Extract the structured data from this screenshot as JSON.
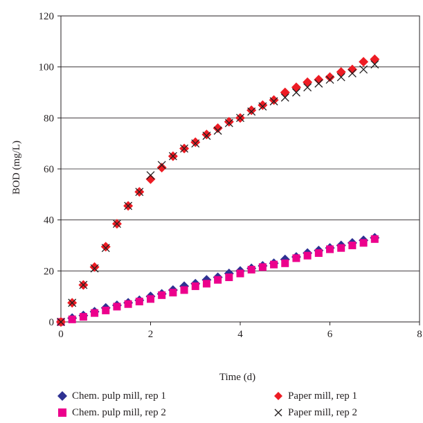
{
  "chart_data": {
    "type": "scatter",
    "xlabel": "Time (d)",
    "ylabel": "BOD (mg/L)",
    "xlim": [
      0,
      8
    ],
    "ylim": [
      0,
      120
    ],
    "xticks": [
      0,
      2,
      4,
      6,
      8
    ],
    "yticks": [
      0,
      20,
      40,
      60,
      80,
      100,
      120
    ],
    "grid": "horizontal",
    "legend_position": "bottom",
    "series": [
      {
        "name": "Chem. pulp mill, rep 1",
        "marker": "diamond",
        "color": "#2e3192",
        "x": [
          0,
          0.25,
          0.5,
          0.75,
          1,
          1.25,
          1.5,
          1.75,
          2,
          2.25,
          2.5,
          2.75,
          3,
          3.25,
          3.5,
          3.75,
          4,
          4.25,
          4.5,
          4.75,
          5,
          5.25,
          5.5,
          5.75,
          6,
          6.25,
          6.5,
          6.75,
          7
        ],
        "y": [
          0,
          1.5,
          2.5,
          4,
          5.5,
          6.5,
          7.5,
          8.5,
          10,
          11,
          12.5,
          14,
          15,
          16.5,
          17.5,
          19,
          20,
          21,
          22,
          23,
          24.5,
          25.5,
          27,
          28,
          29,
          30,
          31,
          32,
          33
        ]
      },
      {
        "name": "Chem. pulp mill, rep 2",
        "marker": "square",
        "color": "#ec008c",
        "x": [
          0,
          0.25,
          0.5,
          0.75,
          1,
          1.25,
          1.5,
          1.75,
          2,
          2.25,
          2.5,
          2.75,
          3,
          3.25,
          3.5,
          3.75,
          4,
          4.25,
          4.5,
          4.75,
          5,
          5.25,
          5.5,
          5.75,
          6,
          6.25,
          6.5,
          6.75,
          7
        ],
        "y": [
          0,
          1,
          2,
          3.5,
          4.5,
          6,
          7,
          8,
          9,
          10.5,
          11.5,
          12.5,
          14,
          15,
          16.5,
          17.5,
          19,
          20.5,
          21.5,
          22.5,
          23,
          25,
          26,
          27,
          28.5,
          29,
          30,
          31,
          32.5
        ]
      },
      {
        "name": "Paper mill, rep 1",
        "marker": "diamond",
        "color": "#ed1c24",
        "x": [
          0,
          0.25,
          0.5,
          0.75,
          1,
          1.25,
          1.5,
          1.75,
          2,
          2.25,
          2.5,
          2.75,
          3,
          3.25,
          3.5,
          3.75,
          4,
          4.25,
          4.5,
          4.75,
          5,
          5.25,
          5.5,
          5.75,
          6,
          6.25,
          6.5,
          6.75,
          7
        ],
        "y": [
          0,
          7.5,
          14.5,
          21.5,
          29.5,
          38.5,
          45.5,
          51,
          56,
          60.5,
          65,
          68,
          70.5,
          73.5,
          76,
          78.5,
          80,
          83,
          85,
          87,
          90,
          92,
          94,
          95,
          96,
          98,
          99,
          102,
          103
        ]
      },
      {
        "name": "Paper mill, rep 2",
        "marker": "x",
        "color": "#231f20",
        "x": [
          0,
          0.25,
          0.5,
          0.75,
          1,
          1.25,
          1.5,
          1.75,
          2,
          2.25,
          2.5,
          2.75,
          3,
          3.25,
          3.5,
          3.75,
          4,
          4.25,
          4.5,
          4.75,
          5,
          5.25,
          5.5,
          5.75,
          6,
          6.25,
          6.5,
          6.75,
          7
        ],
        "y": [
          0,
          7.5,
          14.5,
          21,
          29,
          38.5,
          45.5,
          51,
          57.5,
          61.5,
          65,
          68,
          70,
          73,
          75,
          78,
          80,
          82.5,
          84.5,
          86.5,
          88,
          90,
          92,
          93.5,
          95,
          96,
          97.5,
          99,
          101
        ]
      }
    ]
  }
}
